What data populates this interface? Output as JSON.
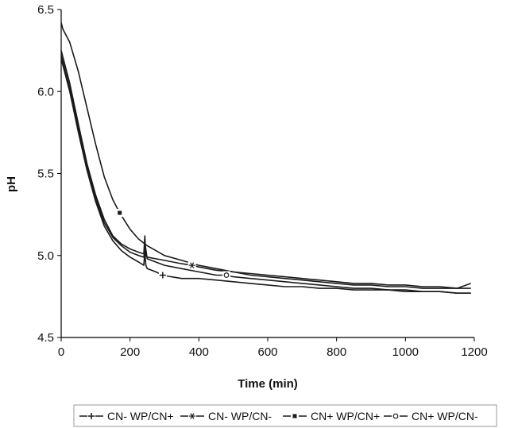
{
  "chart_data": {
    "type": "line",
    "xlabel": "Time (min)",
    "ylabel": "pH",
    "xlim": [
      0,
      1200
    ],
    "ylim": [
      4.5,
      6.5
    ],
    "xticks": [
      0,
      200,
      400,
      600,
      800,
      1000,
      1200
    ],
    "yticks": [
      4.5,
      5.0,
      5.5,
      6.0,
      6.5
    ],
    "xtick_labels": [
      "0",
      "200",
      "400",
      "600",
      "800",
      "1000",
      "1200"
    ],
    "ytick_labels": [
      "4.5",
      "5.0",
      "5.5",
      "6.0",
      "6.5"
    ],
    "grid": false,
    "legend_position": "bottom",
    "line_color": "#1a1a1a",
    "series": [
      {
        "name": "CN- WP/CN+",
        "marker": "+",
        "marker_x": 295,
        "x": [
          0,
          25,
          50,
          75,
          100,
          125,
          150,
          175,
          200,
          225,
          240,
          243,
          246,
          250,
          275,
          295,
          320,
          350,
          380,
          400,
          450,
          500,
          550,
          600,
          650,
          700,
          750,
          800,
          850,
          900,
          950,
          1000,
          1050,
          1100,
          1150,
          1190
        ],
        "values": [
          6.2,
          6.0,
          5.75,
          5.52,
          5.33,
          5.18,
          5.09,
          5.03,
          4.99,
          4.96,
          4.94,
          5.02,
          4.94,
          4.92,
          4.9,
          4.88,
          4.87,
          4.86,
          4.86,
          4.86,
          4.85,
          4.84,
          4.83,
          4.82,
          4.81,
          4.81,
          4.8,
          4.8,
          4.79,
          4.79,
          4.79,
          4.78,
          4.78,
          4.78,
          4.77,
          4.77
        ]
      },
      {
        "name": "CN- WP/CN-",
        "marker": "*",
        "marker_x": 380,
        "x": [
          0,
          25,
          50,
          75,
          100,
          125,
          150,
          175,
          200,
          225,
          240,
          243,
          246,
          250,
          275,
          300,
          325,
          350,
          380,
          400,
          450,
          500,
          550,
          600,
          650,
          700,
          750,
          800,
          850,
          900,
          950,
          1000,
          1050,
          1100,
          1150,
          1190
        ],
        "values": [
          6.25,
          6.05,
          5.8,
          5.56,
          5.37,
          5.22,
          5.12,
          5.07,
          5.04,
          5.02,
          5.01,
          5.12,
          5.0,
          4.99,
          4.98,
          4.97,
          4.96,
          4.95,
          4.94,
          4.93,
          4.91,
          4.9,
          4.89,
          4.88,
          4.87,
          4.86,
          4.85,
          4.84,
          4.83,
          4.83,
          4.82,
          4.82,
          4.81,
          4.81,
          4.8,
          4.8
        ]
      },
      {
        "name": "CN+ WP/CN+",
        "marker": "▪",
        "marker_x": 170,
        "x": [
          0,
          5,
          25,
          50,
          75,
          100,
          125,
          150,
          170,
          200,
          225,
          250,
          275,
          300,
          350,
          400,
          450,
          500,
          550,
          600,
          650,
          700,
          750,
          800,
          850,
          900,
          950,
          1000,
          1050,
          1100,
          1150,
          1190
        ],
        "values": [
          6.42,
          6.38,
          6.3,
          6.12,
          5.9,
          5.68,
          5.48,
          5.34,
          5.26,
          5.16,
          5.1,
          5.06,
          5.03,
          5.0,
          4.97,
          4.94,
          4.92,
          4.9,
          4.88,
          4.87,
          4.86,
          4.85,
          4.84,
          4.83,
          4.82,
          4.82,
          4.81,
          4.81,
          4.8,
          4.8,
          4.8,
          4.83
        ]
      },
      {
        "name": "CN+ WP/CN-",
        "marker": "o",
        "marker_x": 480,
        "x": [
          0,
          25,
          50,
          75,
          100,
          125,
          150,
          175,
          200,
          225,
          240,
          245,
          250,
          275,
          300,
          350,
          400,
          450,
          480,
          500,
          550,
          600,
          650,
          700,
          750,
          800,
          850,
          900,
          950,
          1000,
          1050,
          1100,
          1150,
          1190
        ],
        "values": [
          6.22,
          6.02,
          5.77,
          5.54,
          5.35,
          5.2,
          5.11,
          5.06,
          5.02,
          5.0,
          4.99,
          5.05,
          4.98,
          4.96,
          4.94,
          4.92,
          4.9,
          4.88,
          4.88,
          4.87,
          4.86,
          4.85,
          4.84,
          4.83,
          4.82,
          4.81,
          4.8,
          4.8,
          4.79,
          4.79,
          4.78,
          4.78,
          4.77,
          4.77
        ]
      }
    ]
  }
}
